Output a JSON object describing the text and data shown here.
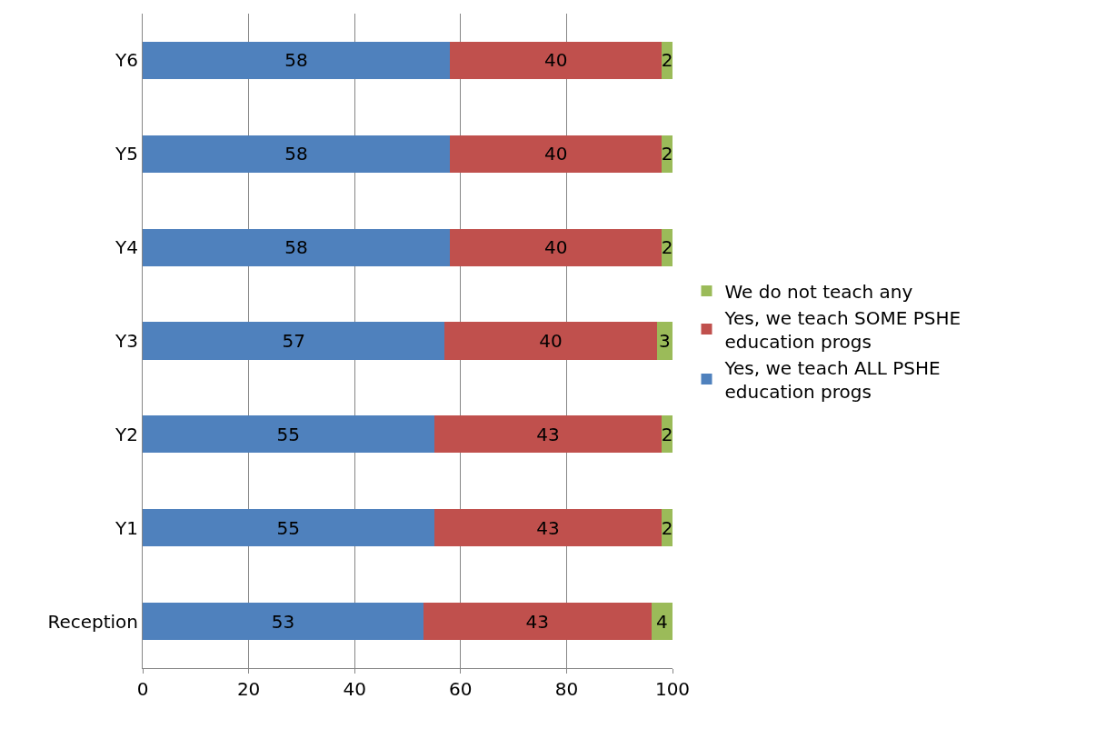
{
  "chart_data": {
    "type": "bar",
    "orientation": "horizontal",
    "stacked": true,
    "data_labels": true,
    "categories": [
      "Y6",
      "Y5",
      "Y4",
      "Y3",
      "Y2",
      "Y1",
      "Reception"
    ],
    "series": [
      {
        "name": "Yes, we teach ALL PSHE education progs",
        "color": "#4f81bd",
        "values": [
          58,
          58,
          58,
          57,
          55,
          55,
          53
        ]
      },
      {
        "name": "Yes, we teach SOME PSHE education progs",
        "color": "#c0504d",
        "values": [
          40,
          40,
          40,
          40,
          43,
          43,
          43
        ]
      },
      {
        "name": "We do not teach any",
        "color": "#9bbb59",
        "values": [
          2,
          2,
          2,
          3,
          2,
          2,
          4
        ]
      }
    ],
    "xlim": [
      0,
      100
    ],
    "xticks": [
      0,
      20,
      40,
      60,
      80,
      100
    ],
    "grid": "x",
    "legend": "right"
  }
}
